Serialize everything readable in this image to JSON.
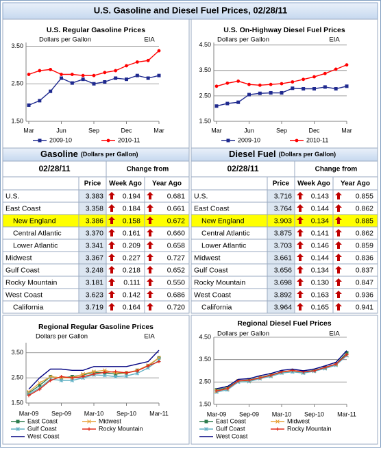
{
  "title": "U.S. Gasoline and Diesel Fuel Prices, 02/28/11",
  "chart_data": [
    {
      "type": "line",
      "title": "U.S. Regular Gasoline Prices",
      "subtitle": "Dollars per Gallon",
      "source": "EIA",
      "categories": [
        "Mar",
        null,
        null,
        "Jun",
        null,
        null,
        "Sep",
        null,
        null,
        "Dec",
        null,
        null,
        "Mar"
      ],
      "ylim": [
        1.5,
        3.6
      ],
      "yticks": [
        {
          "value": 1.5,
          "label": "1.50"
        },
        {
          "value": 2.5,
          "label": "2.50"
        },
        {
          "value": 3.5,
          "label": "3.50"
        }
      ],
      "grid": true,
      "series": [
        {
          "name": "2009-10",
          "color": "#1f2a8f",
          "marker": "square",
          "values": [
            1.93,
            2.05,
            2.3,
            2.65,
            2.52,
            2.62,
            2.5,
            2.55,
            2.65,
            2.62,
            2.72,
            2.65,
            2.72
          ]
        },
        {
          "name": "2010-11",
          "color": "#ff0000",
          "marker": "circle",
          "values": [
            2.75,
            2.85,
            2.88,
            2.75,
            2.75,
            2.72,
            2.72,
            2.8,
            2.85,
            2.98,
            3.08,
            3.12,
            3.38
          ]
        }
      ]
    },
    {
      "type": "line",
      "title": "U.S. On-Highway Diesel Fuel Prices",
      "subtitle": "Dollars per Gallon",
      "source": "EIA",
      "categories": [
        "Mar",
        null,
        null,
        "Jun",
        null,
        null,
        "Sep",
        null,
        null,
        "Dec",
        null,
        null,
        "Mar"
      ],
      "ylim": [
        1.5,
        4.6
      ],
      "yticks": [
        {
          "value": 1.5,
          "label": "1.50"
        },
        {
          "value": 2.5,
          "label": "2.50"
        },
        {
          "value": 3.5,
          "label": "3.50"
        },
        {
          "value": 4.5,
          "label": "4.50"
        }
      ],
      "grid": true,
      "series": [
        {
          "name": "2009-10",
          "color": "#1f2a8f",
          "marker": "square",
          "values": [
            2.1,
            2.2,
            2.25,
            2.55,
            2.6,
            2.62,
            2.62,
            2.8,
            2.78,
            2.78,
            2.85,
            2.78,
            2.88
          ]
        },
        {
          "name": "2010-11",
          "color": "#ff0000",
          "marker": "circle",
          "values": [
            2.88,
            3.0,
            3.08,
            2.95,
            2.92,
            2.95,
            2.98,
            3.05,
            3.15,
            3.25,
            3.38,
            3.55,
            3.72
          ]
        }
      ]
    },
    {
      "type": "line",
      "title": "Regional Regular Gasoline Prices",
      "subtitle": "Dollars per Gallon",
      "source": "EIA",
      "categories": [
        "Mar-09",
        null,
        null,
        "Sep-09",
        null,
        null,
        "Mar-10",
        null,
        null,
        "Sep-10",
        null,
        null,
        "Mar-11"
      ],
      "ylim": [
        1.5,
        3.9
      ],
      "yticks": [
        {
          "value": 1.5,
          "label": "1.50"
        },
        {
          "value": 2.5,
          "label": "2.50"
        },
        {
          "value": 3.5,
          "label": "3.50"
        }
      ],
      "grid": true,
      "series": [
        {
          "name": "East Coast",
          "color": "#2e7d4f",
          "marker": "square",
          "values": [
            1.9,
            2.2,
            2.55,
            2.5,
            2.55,
            2.62,
            2.72,
            2.7,
            2.65,
            2.7,
            2.8,
            2.98,
            3.3
          ]
        },
        {
          "name": "Midwest",
          "color": "#e8a33c",
          "marker": "x",
          "values": [
            1.95,
            2.3,
            2.55,
            2.5,
            2.5,
            2.65,
            2.75,
            2.8,
            2.7,
            2.7,
            2.8,
            3.0,
            3.3
          ]
        },
        {
          "name": "Gulf Coast",
          "color": "#5fb0c4",
          "marker": "star",
          "values": [
            1.85,
            2.1,
            2.45,
            2.4,
            2.4,
            2.5,
            2.62,
            2.6,
            2.55,
            2.58,
            2.68,
            2.9,
            3.2
          ]
        },
        {
          "name": "Rocky Mountain",
          "color": "#e02a1a",
          "marker": "plus",
          "values": [
            1.8,
            2.05,
            2.4,
            2.55,
            2.5,
            2.55,
            2.65,
            2.72,
            2.75,
            2.7,
            2.78,
            2.98,
            3.15
          ]
        },
        {
          "name": "West Coast",
          "color": "#000080",
          "marker": "none",
          "values": [
            2.05,
            2.5,
            2.85,
            2.85,
            2.8,
            2.8,
            2.95,
            2.95,
            2.95,
            2.95,
            3.05,
            3.15,
            3.6
          ]
        }
      ]
    },
    {
      "type": "line",
      "title": "Regional Diesel Fuel Prices",
      "subtitle": "Dollars per Gallon",
      "source": "EIA",
      "categories": [
        "Mar-09",
        null,
        null,
        "Sep-09",
        null,
        null,
        "Mar-10",
        null,
        null,
        "Sep-10",
        null,
        null,
        "Mar-11"
      ],
      "ylim": [
        1.5,
        4.5
      ],
      "yticks": [
        {
          "value": 1.5,
          "label": "1.50"
        },
        {
          "value": 2.5,
          "label": "2.50"
        },
        {
          "value": 3.5,
          "label": "3.50"
        },
        {
          "value": 4.5,
          "label": "4.50"
        }
      ],
      "grid": true,
      "series": [
        {
          "name": "East Coast",
          "color": "#2e7d4f",
          "marker": "square",
          "values": [
            2.15,
            2.25,
            2.55,
            2.6,
            2.7,
            2.82,
            2.95,
            3.0,
            2.95,
            3.02,
            3.15,
            3.3,
            3.8
          ]
        },
        {
          "name": "Midwest",
          "color": "#e8a33c",
          "marker": "x",
          "values": [
            2.1,
            2.2,
            2.55,
            2.55,
            2.7,
            2.78,
            2.92,
            3.0,
            2.92,
            3.0,
            3.12,
            3.28,
            3.7
          ]
        },
        {
          "name": "Gulf Coast",
          "color": "#5fb0c4",
          "marker": "star",
          "values": [
            2.05,
            2.15,
            2.5,
            2.52,
            2.65,
            2.75,
            2.9,
            2.95,
            2.9,
            2.98,
            3.1,
            3.25,
            3.68
          ]
        },
        {
          "name": "Rocky Mountain",
          "color": "#e02a1a",
          "marker": "plus",
          "values": [
            2.1,
            2.2,
            2.55,
            2.58,
            2.68,
            2.8,
            2.95,
            3.02,
            2.95,
            3.0,
            3.15,
            3.3,
            3.72
          ]
        },
        {
          "name": "West Coast",
          "color": "#000080",
          "marker": "none",
          "values": [
            2.2,
            2.3,
            2.62,
            2.65,
            2.78,
            2.88,
            3.02,
            3.08,
            3.0,
            3.08,
            3.22,
            3.38,
            3.9
          ]
        }
      ]
    }
  ],
  "tables": [
    {
      "title": "Gasoline",
      "unit": "(Dollars per Gallon)",
      "date": "02/28/11",
      "change_header": "Change from",
      "columns": [
        "Price",
        "Week Ago",
        "Year Ago"
      ],
      "highlight_row": 2,
      "indented_rows": [
        2,
        3,
        4,
        9
      ],
      "rows": [
        [
          "U.S.",
          "3.383",
          "0.194",
          "0.681"
        ],
        [
          "East Coast",
          "3.358",
          "0.184",
          "0.661"
        ],
        [
          "New England",
          "3.386",
          "0.158",
          "0.672"
        ],
        [
          "Central Atlantic",
          "3.370",
          "0.161",
          "0.660"
        ],
        [
          "Lower Atlantic",
          "3.341",
          "0.209",
          "0.658"
        ],
        [
          "Midwest",
          "3.367",
          "0.227",
          "0.727"
        ],
        [
          "Gulf Coast",
          "3.248",
          "0.218",
          "0.652"
        ],
        [
          "Rocky Mountain",
          "3.181",
          "0.111",
          "0.550"
        ],
        [
          "West Coast",
          "3.623",
          "0.142",
          "0.686"
        ],
        [
          "California",
          "3.719",
          "0.164",
          "0.720"
        ]
      ]
    },
    {
      "title": "Diesel Fuel",
      "unit": "(Dollars per Gallon)",
      "date": "02/28/11",
      "change_header": "Change from",
      "columns": [
        "Price",
        "Week Ago",
        "Year Ago"
      ],
      "highlight_row": 2,
      "indented_rows": [
        2,
        3,
        4,
        9
      ],
      "rows": [
        [
          "U.S.",
          "3.716",
          "0.143",
          "0.855"
        ],
        [
          "East Coast",
          "3.764",
          "0.144",
          "0.862"
        ],
        [
          "New England",
          "3.903",
          "0.134",
          "0.885"
        ],
        [
          "Central Atlantic",
          "3.875",
          "0.141",
          "0.862"
        ],
        [
          "Lower Atlantic",
          "3.703",
          "0.146",
          "0.859"
        ],
        [
          "Midwest",
          "3.661",
          "0.144",
          "0.836"
        ],
        [
          "Gulf Coast",
          "3.656",
          "0.134",
          "0.837"
        ],
        [
          "Rocky Mountain",
          "3.698",
          "0.130",
          "0.847"
        ],
        [
          "West Coast",
          "3.892",
          "0.163",
          "0.936"
        ],
        [
          "California",
          "3.964",
          "0.165",
          "0.941"
        ]
      ]
    }
  ]
}
